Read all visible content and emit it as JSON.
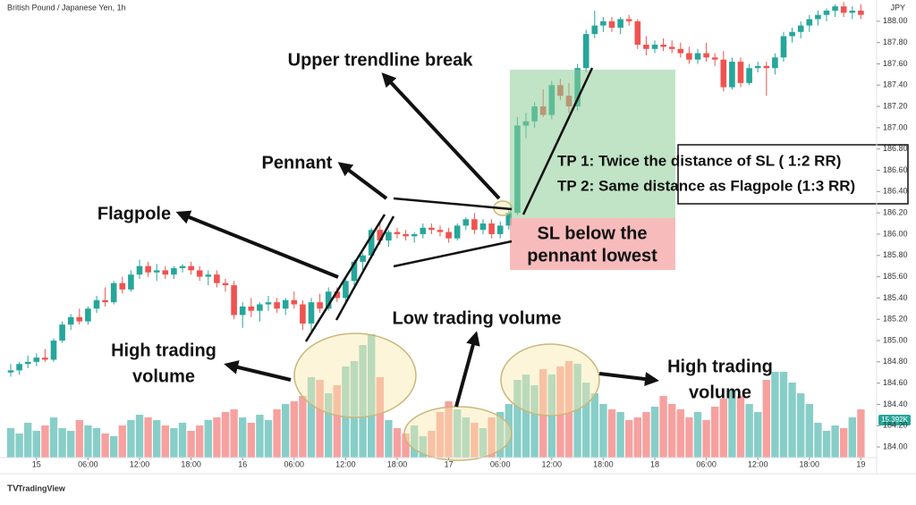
{
  "chart_data": {
    "type": "candlestick",
    "title": "British Pound / Japanese Yen, 1h",
    "currency": "JPY",
    "colors": {
      "up": "#26a69a",
      "down": "#ef5350"
    },
    "ylim": [
      183.9,
      188.2
    ],
    "yticks": [
      {
        "value": 184,
        "label": "184.00"
      },
      {
        "value": 184.2,
        "label": "184.20"
      },
      {
        "value": 184.4,
        "label": "184.40"
      },
      {
        "value": 184.6,
        "label": "184.60"
      },
      {
        "value": 184.8,
        "label": "184.80"
      },
      {
        "value": 185,
        "label": "185.00"
      },
      {
        "value": 185.2,
        "label": "185.20"
      },
      {
        "value": 185.4,
        "label": "185.40"
      },
      {
        "value": 185.6,
        "label": "185.60"
      },
      {
        "value": 185.8,
        "label": "185.80"
      },
      {
        "value": 186,
        "label": "186.00"
      },
      {
        "value": 186.2,
        "label": "186.20"
      },
      {
        "value": 186.4,
        "label": "186.40"
      },
      {
        "value": 186.6,
        "label": "186.60"
      },
      {
        "value": 186.8,
        "label": "186.80"
      },
      {
        "value": 187,
        "label": "187.00"
      },
      {
        "value": 187.2,
        "label": "187.20"
      },
      {
        "value": 187.4,
        "label": "187.40"
      },
      {
        "value": 187.6,
        "label": "187.60"
      },
      {
        "value": 187.8,
        "label": "187.80"
      },
      {
        "value": 188,
        "label": "188.00"
      }
    ],
    "xticks": [
      {
        "value": 3,
        "label": "15"
      },
      {
        "value": 9,
        "label": "06:00"
      },
      {
        "value": 15,
        "label": "12:00"
      },
      {
        "value": 21,
        "label": "18:00"
      },
      {
        "value": 27,
        "label": "16"
      },
      {
        "value": 33,
        "label": "06:00"
      },
      {
        "value": 39,
        "label": "12:00"
      },
      {
        "value": 45,
        "label": "18:00"
      },
      {
        "value": 51,
        "label": "17"
      },
      {
        "value": 57,
        "label": "06:00"
      },
      {
        "value": 63,
        "label": "12:00"
      },
      {
        "value": 69,
        "label": "18:00"
      },
      {
        "value": 75,
        "label": "18"
      },
      {
        "value": 81,
        "label": "06:00"
      },
      {
        "value": 87,
        "label": "12:00"
      },
      {
        "value": 93,
        "label": "18:00"
      },
      {
        "value": 99,
        "label": "19"
      }
    ],
    "candles": [
      [
        184.7,
        184.78,
        184.66,
        184.72
      ],
      [
        184.72,
        184.8,
        184.68,
        184.78
      ],
      [
        184.78,
        184.86,
        184.74,
        184.8
      ],
      [
        184.8,
        184.88,
        184.76,
        184.84
      ],
      [
        184.84,
        184.92,
        184.8,
        184.82
      ],
      [
        184.82,
        185.02,
        184.8,
        185.0
      ],
      [
        185.0,
        185.18,
        184.98,
        185.15
      ],
      [
        185.15,
        185.25,
        185.1,
        185.22
      ],
      [
        185.22,
        185.3,
        185.15,
        185.18
      ],
      [
        185.18,
        185.32,
        185.15,
        185.3
      ],
      [
        185.3,
        185.42,
        185.26,
        185.38
      ],
      [
        185.38,
        185.5,
        185.32,
        185.36
      ],
      [
        185.36,
        185.56,
        185.34,
        185.54
      ],
      [
        185.54,
        185.6,
        185.44,
        185.48
      ],
      [
        185.48,
        185.66,
        185.46,
        185.62
      ],
      [
        185.62,
        185.76,
        185.58,
        185.7
      ],
      [
        185.7,
        185.74,
        185.6,
        185.64
      ],
      [
        185.64,
        185.72,
        185.56,
        185.66
      ],
      [
        185.66,
        185.7,
        185.58,
        185.62
      ],
      [
        185.62,
        185.7,
        185.58,
        185.68
      ],
      [
        185.68,
        185.72,
        185.64,
        185.7
      ],
      [
        185.7,
        185.74,
        185.62,
        185.66
      ],
      [
        185.66,
        185.7,
        185.56,
        185.6
      ],
      [
        185.6,
        185.66,
        185.52,
        185.62
      ],
      [
        185.62,
        185.66,
        185.5,
        185.54
      ],
      [
        185.54,
        185.58,
        185.46,
        185.52
      ],
      [
        185.52,
        185.56,
        185.2,
        185.24
      ],
      [
        185.24,
        185.36,
        185.12,
        185.32
      ],
      [
        185.32,
        185.4,
        185.22,
        185.28
      ],
      [
        185.28,
        185.36,
        185.18,
        185.34
      ],
      [
        185.34,
        185.42,
        185.28,
        185.36
      ],
      [
        185.36,
        185.4,
        185.26,
        185.3
      ],
      [
        185.3,
        185.4,
        185.24,
        185.38
      ],
      [
        185.38,
        185.46,
        185.3,
        185.34
      ],
      [
        185.34,
        185.38,
        185.1,
        185.16
      ],
      [
        185.16,
        185.4,
        185.06,
        185.36
      ],
      [
        185.36,
        185.44,
        185.26,
        185.3
      ],
      [
        185.3,
        185.5,
        185.28,
        185.46
      ],
      [
        185.46,
        185.5,
        185.36,
        185.4
      ],
      [
        185.4,
        185.6,
        185.36,
        185.56
      ],
      [
        185.56,
        185.76,
        185.52,
        185.74
      ],
      [
        185.74,
        185.82,
        185.66,
        185.8
      ],
      [
        185.8,
        186.06,
        185.78,
        186.04
      ],
      [
        186.04,
        186.1,
        185.9,
        185.94
      ],
      [
        185.94,
        186.04,
        185.88,
        186.02
      ],
      [
        186.02,
        186.06,
        185.96,
        186.0
      ],
      [
        186.0,
        186.04,
        185.94,
        185.98
      ],
      [
        185.98,
        186.02,
        185.92,
        186.0
      ],
      [
        186.0,
        186.1,
        185.96,
        186.06
      ],
      [
        186.06,
        186.1,
        186.0,
        186.04
      ],
      [
        186.04,
        186.08,
        185.98,
        186.02
      ],
      [
        186.02,
        186.06,
        185.92,
        185.96
      ],
      [
        185.96,
        186.1,
        185.94,
        186.08
      ],
      [
        186.08,
        186.16,
        186.04,
        186.14
      ],
      [
        186.14,
        186.2,
        186.0,
        186.04
      ],
      [
        186.04,
        186.14,
        186.0,
        186.1
      ],
      [
        186.1,
        186.14,
        185.96,
        186.0
      ],
      [
        186.0,
        186.12,
        185.96,
        186.08
      ],
      [
        186.08,
        186.24,
        186.04,
        186.2
      ],
      [
        186.2,
        187.1,
        186.18,
        187.02
      ],
      [
        187.02,
        187.14,
        186.9,
        187.06
      ],
      [
        187.06,
        187.24,
        187.0,
        187.2
      ],
      [
        187.2,
        187.36,
        187.1,
        187.12
      ],
      [
        187.12,
        187.44,
        187.08,
        187.4
      ],
      [
        187.4,
        187.46,
        187.26,
        187.3
      ],
      [
        187.3,
        187.42,
        187.14,
        187.2
      ],
      [
        187.2,
        187.6,
        187.16,
        187.56
      ],
      [
        187.56,
        187.92,
        187.52,
        187.88
      ],
      [
        187.88,
        188.1,
        187.84,
        187.96
      ],
      [
        187.96,
        188.04,
        187.9,
        188.0
      ],
      [
        188.0,
        188.04,
        187.9,
        187.94
      ],
      [
        187.94,
        188.04,
        187.88,
        188.02
      ],
      [
        188.02,
        188.06,
        187.96,
        188.0
      ],
      [
        188.0,
        188.02,
        187.74,
        187.78
      ],
      [
        187.78,
        187.86,
        187.68,
        187.74
      ],
      [
        187.74,
        187.82,
        187.7,
        187.78
      ],
      [
        187.78,
        187.84,
        187.72,
        187.76
      ],
      [
        187.76,
        187.82,
        187.7,
        187.74
      ],
      [
        187.74,
        187.8,
        187.66,
        187.7
      ],
      [
        187.7,
        187.76,
        187.6,
        187.64
      ],
      [
        187.64,
        187.74,
        187.6,
        187.7
      ],
      [
        187.7,
        187.8,
        187.62,
        187.66
      ],
      [
        187.66,
        187.7,
        187.58,
        187.64
      ],
      [
        187.64,
        187.72,
        187.34,
        187.38
      ],
      [
        187.38,
        187.66,
        187.36,
        187.62
      ],
      [
        187.62,
        187.66,
        187.38,
        187.42
      ],
      [
        187.42,
        187.6,
        187.4,
        187.56
      ],
      [
        187.56,
        187.62,
        187.52,
        187.58
      ],
      [
        187.58,
        187.62,
        187.3,
        187.56
      ],
      [
        187.56,
        187.7,
        187.5,
        187.66
      ],
      [
        187.66,
        187.9,
        187.62,
        187.86
      ],
      [
        187.86,
        187.94,
        187.8,
        187.9
      ],
      [
        187.9,
        188.0,
        187.84,
        187.96
      ],
      [
        187.96,
        188.06,
        187.9,
        188.02
      ],
      [
        188.02,
        188.1,
        187.96,
        188.06
      ],
      [
        188.06,
        188.12,
        188.0,
        188.1
      ],
      [
        188.1,
        188.16,
        188.04,
        188.14
      ],
      [
        188.14,
        188.18,
        188.04,
        188.08
      ],
      [
        188.08,
        188.14,
        188.02,
        188.1
      ],
      [
        188.1,
        188.16,
        188.02,
        188.06
      ]
    ],
    "volumes": [
      22,
      18,
      26,
      20,
      24,
      30,
      22,
      20,
      28,
      24,
      22,
      18,
      16,
      24,
      28,
      32,
      30,
      28,
      24,
      22,
      26,
      20,
      24,
      28,
      30,
      34,
      36,
      30,
      26,
      32,
      28,
      36,
      40,
      42,
      46,
      60,
      58,
      48,
      54,
      68,
      72,
      84,
      92,
      60,
      28,
      22,
      18,
      24,
      16,
      20,
      34,
      42,
      36,
      30,
      26,
      22,
      30,
      34,
      40,
      58,
      62,
      54,
      66,
      62,
      68,
      72,
      70,
      56,
      48,
      40,
      36,
      34,
      28,
      30,
      34,
      38,
      46,
      40,
      36,
      30,
      34,
      28,
      38,
      44,
      50,
      46,
      40,
      34,
      58,
      64,
      64,
      56,
      48,
      40,
      26,
      20,
      24,
      22,
      30,
      36
    ],
    "volume_lim": [
      0,
      100
    ],
    "volume_label": "15.392K"
  },
  "annotations": {
    "upper_break": "Upper trendline break",
    "pennant": "Pennant",
    "flagpole": "Flagpole",
    "high_volume_left": [
      "High trading",
      "volume"
    ],
    "low_volume": "Low trading volume",
    "high_volume_right": [
      "High trading",
      "volume"
    ],
    "tp": [
      "TP 1: Twice the distance of SL ( 1:2 RR)",
      "TP 2: Same distance as Flagpole (1:3 RR)"
    ],
    "sl": [
      "SL below  the",
      "pennant lowest"
    ]
  },
  "footer": "TradingView"
}
